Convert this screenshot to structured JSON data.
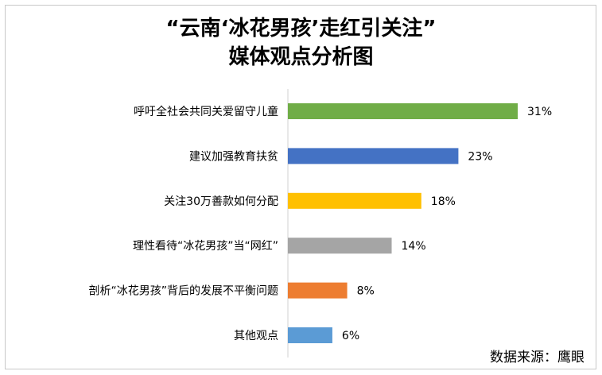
{
  "title_lines": [
    "“云南‘冰花男孩’走红引关注”",
    "媒体观点分析图"
  ],
  "source": "数据来源：鹰眼",
  "chart_data": {
    "type": "bar",
    "orientation": "horizontal",
    "title": "“云南‘冰花男孩’走红引关注” 媒体观点分析图",
    "categories": [
      "呼吁全社会共同关爱留守儿童",
      "建议加强教育扶贫",
      "关注30万善款如何分配",
      "理性看待“冰花男孩”当“网红”",
      "剖析“冰花男孩”背后的发展不平衡问题",
      "其他观点"
    ],
    "values": [
      31,
      23,
      18,
      14,
      8,
      6
    ],
    "value_labels": [
      "31%",
      "23%",
      "18%",
      "14%",
      "8%",
      "6%"
    ],
    "colors": [
      "#70ad47",
      "#4472c4",
      "#ffc000",
      "#a5a5a5",
      "#ed7d31",
      "#5b9bd5"
    ],
    "xlim": [
      0,
      31
    ],
    "xlabel": "",
    "ylabel": "",
    "grid": false,
    "legend": "none"
  }
}
